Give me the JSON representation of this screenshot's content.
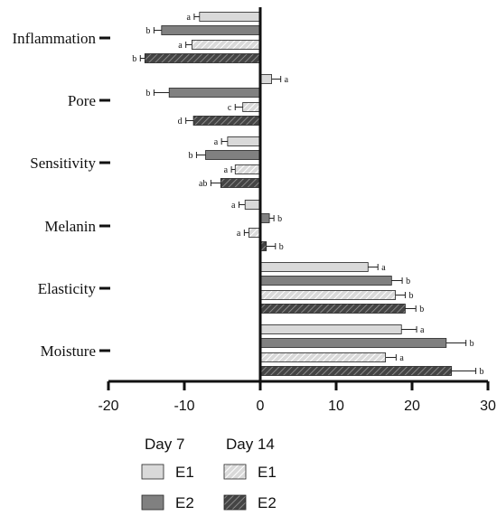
{
  "chart_data": {
    "type": "bar",
    "orientation": "horizontal",
    "categories": [
      "Inflammation",
      "Pore",
      "Sensitivity",
      "Melanin",
      "Elasticity",
      "Moisture"
    ],
    "series": [
      {
        "name": "E1",
        "group": "Day 7",
        "pattern": "solid",
        "color": "#d9d9d9",
        "values": [
          -8.0,
          1.5,
          -4.3,
          -2.0,
          14.2,
          18.6
        ],
        "errors": [
          0.7,
          1.2,
          0.8,
          0.8,
          1.3,
          2.0
        ],
        "labels": [
          "a",
          "a",
          "a",
          "a",
          "a",
          "a"
        ]
      },
      {
        "name": "E2",
        "group": "Day 7",
        "pattern": "solid",
        "color": "#808080",
        "values": [
          -13.0,
          -12.0,
          -7.2,
          1.2,
          17.3,
          24.5
        ],
        "errors": [
          1.0,
          2.0,
          1.2,
          0.6,
          1.4,
          2.6
        ],
        "labels": [
          "b",
          "b",
          "b",
          "b",
          "b",
          "b"
        ]
      },
      {
        "name": "E1",
        "group": "Day 14",
        "pattern": "hatched",
        "color": "#d9d9d9",
        "values": [
          -9.0,
          -2.3,
          -3.3,
          -1.5,
          17.8,
          16.5
        ],
        "errors": [
          0.8,
          1.0,
          0.5,
          0.6,
          1.3,
          1.4
        ],
        "labels": [
          "a",
          "c",
          "a",
          "a",
          "b",
          "a"
        ]
      },
      {
        "name": "E2",
        "group": "Day 14",
        "pattern": "hatched",
        "color": "#555555",
        "values": [
          -15.2,
          -8.8,
          -5.2,
          0.8,
          19.1,
          25.2
        ],
        "errors": [
          0.6,
          1.0,
          1.3,
          1.2,
          1.4,
          3.2
        ],
        "labels": [
          "b",
          "d",
          "ab",
          "b",
          "b",
          "b"
        ]
      }
    ],
    "xlim": [
      -20,
      30
    ],
    "xticks": [
      "-20",
      "-10",
      "0",
      "10",
      "20",
      "30"
    ],
    "xlabel": "",
    "ylabel": "",
    "legend": {
      "placement": "bottom",
      "headers": [
        "Day 7",
        "Day 14"
      ],
      "labels": [
        "E1",
        "E2"
      ]
    }
  }
}
